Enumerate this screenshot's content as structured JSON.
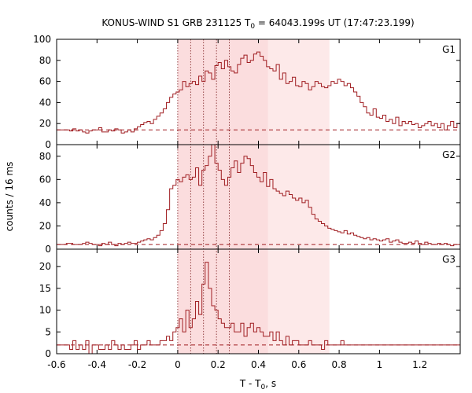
{
  "chart_data": {
    "type": "line",
    "style": "histogram-step",
    "title": {
      "prefix": "KONUS-WIND S1 GRB 231125 T",
      "sub": "0",
      "suffix": " = 64043.199s UT (17:47:23.199)"
    },
    "xlabel": {
      "prefix": "T - T",
      "sub": "0",
      "suffix": ", s"
    },
    "ylabel": "counts / 16 ms",
    "xlim": [
      -0.6,
      1.4
    ],
    "xticks": [
      -0.6,
      -0.4,
      -0.2,
      0,
      0.2,
      0.4,
      0.6,
      0.8,
      1,
      1.2
    ],
    "xtick_labels": [
      "-0.6",
      "-0.4",
      "-0.2",
      "0",
      "0.2",
      "0.4",
      "0.6",
      "0.8",
      "1",
      "1.2"
    ],
    "bin_width": 0.016,
    "x_start": -0.6,
    "dotted_vlines": [
      0.0,
      0.064,
      0.128,
      0.192,
      0.256
    ],
    "shaded_intervals": [
      {
        "from": 0.0,
        "to": 0.448,
        "color": "#f8c6c8",
        "opacity": 0.6
      },
      {
        "from": 0.448,
        "to": 0.752,
        "color": "#fbdadb",
        "opacity": 0.6
      }
    ],
    "line_color": "#a01e22",
    "panels": [
      {
        "name": "G1",
        "ylim": [
          0,
          100
        ],
        "yticks": [
          0,
          20,
          40,
          60,
          80,
          100
        ],
        "ytick_labels": [
          "0",
          "20",
          "40",
          "60",
          "80",
          "100"
        ],
        "background": 14,
        "values": [
          14,
          14,
          14,
          14,
          13,
          15,
          13,
          14,
          12,
          11,
          13,
          14,
          14,
          16,
          12,
          12,
          14,
          13,
          15,
          14,
          11,
          12,
          14,
          12,
          15,
          17,
          19,
          21,
          22,
          20,
          24,
          27,
          30,
          34,
          40,
          45,
          48,
          50,
          52,
          60,
          55,
          58,
          60,
          57,
          65,
          60,
          70,
          68,
          62,
          75,
          78,
          72,
          80,
          74,
          70,
          68,
          76,
          82,
          85,
          78,
          80,
          86,
          88,
          84,
          80,
          74,
          72,
          70,
          76,
          62,
          68,
          58,
          60,
          64,
          56,
          55,
          60,
          58,
          52,
          55,
          60,
          58,
          55,
          54,
          56,
          60,
          58,
          62,
          60,
          56,
          58,
          54,
          50,
          46,
          40,
          36,
          30,
          28,
          34,
          26,
          25,
          28,
          22,
          24,
          20,
          26,
          18,
          22,
          20,
          22,
          19,
          20,
          16,
          18,
          20,
          22,
          18,
          20,
          16,
          20,
          14,
          18,
          22,
          16,
          20
        ]
      },
      {
        "name": "G2",
        "ylim": [
          0,
          90
        ],
        "yticks": [
          0,
          20,
          40,
          60,
          80
        ],
        "ytick_labels": [
          "0",
          "20",
          "40",
          "60",
          "80"
        ],
        "background": 4,
        "values": [
          4,
          4,
          4,
          5,
          5,
          4,
          4,
          4,
          5,
          6,
          5,
          4,
          4,
          3,
          5,
          4,
          6,
          4,
          3,
          5,
          4,
          5,
          6,
          5,
          5,
          6,
          7,
          8,
          9,
          8,
          10,
          12,
          16,
          22,
          34,
          52,
          55,
          60,
          58,
          62,
          64,
          60,
          62,
          70,
          55,
          68,
          72,
          80,
          90,
          74,
          68,
          60,
          55,
          62,
          70,
          76,
          66,
          74,
          80,
          78,
          72,
          66,
          62,
          58,
          66,
          54,
          60,
          52,
          50,
          48,
          46,
          50,
          47,
          44,
          42,
          44,
          40,
          42,
          36,
          30,
          26,
          24,
          22,
          20,
          18,
          17,
          16,
          15,
          14,
          16,
          13,
          14,
          12,
          11,
          10,
          9,
          10,
          8,
          9,
          8,
          7,
          8,
          9,
          6,
          7,
          8,
          6,
          5,
          5,
          6,
          5,
          7,
          5,
          4,
          6,
          5,
          4,
          4,
          5,
          4,
          5,
          4,
          3,
          4,
          4
        ]
      },
      {
        "name": "G3",
        "ylim": [
          0,
          24
        ],
        "yticks": [
          0,
          5,
          10,
          15,
          20
        ],
        "ytick_labels": [
          "0",
          "5",
          "10",
          "15",
          "20"
        ],
        "background": 2,
        "values": [
          2,
          2,
          2,
          2,
          1,
          3,
          1,
          2,
          1,
          3,
          0,
          2,
          2,
          1,
          1,
          2,
          1,
          3,
          2,
          1,
          2,
          1,
          1,
          2,
          3,
          1,
          2,
          2,
          3,
          2,
          2,
          2,
          3,
          3,
          4,
          3,
          5,
          6,
          8,
          5,
          10,
          6,
          8,
          12,
          9,
          16,
          21,
          15,
          11,
          10,
          8,
          7,
          6,
          6,
          7,
          5,
          5,
          7,
          4,
          6,
          7,
          5,
          6,
          5,
          4,
          4,
          5,
          3,
          5,
          3,
          2,
          4,
          2,
          3,
          3,
          2,
          2,
          2,
          3,
          2,
          2,
          2,
          1,
          3,
          2,
          2,
          2,
          2,
          3,
          2,
          2,
          2,
          2,
          2,
          2,
          2,
          2,
          2,
          2,
          2,
          2,
          2,
          2,
          2,
          2,
          2,
          2,
          2,
          2,
          2,
          2,
          2,
          2,
          2,
          2,
          2,
          2,
          2,
          2,
          2,
          2,
          2,
          2,
          2,
          2
        ]
      }
    ]
  }
}
